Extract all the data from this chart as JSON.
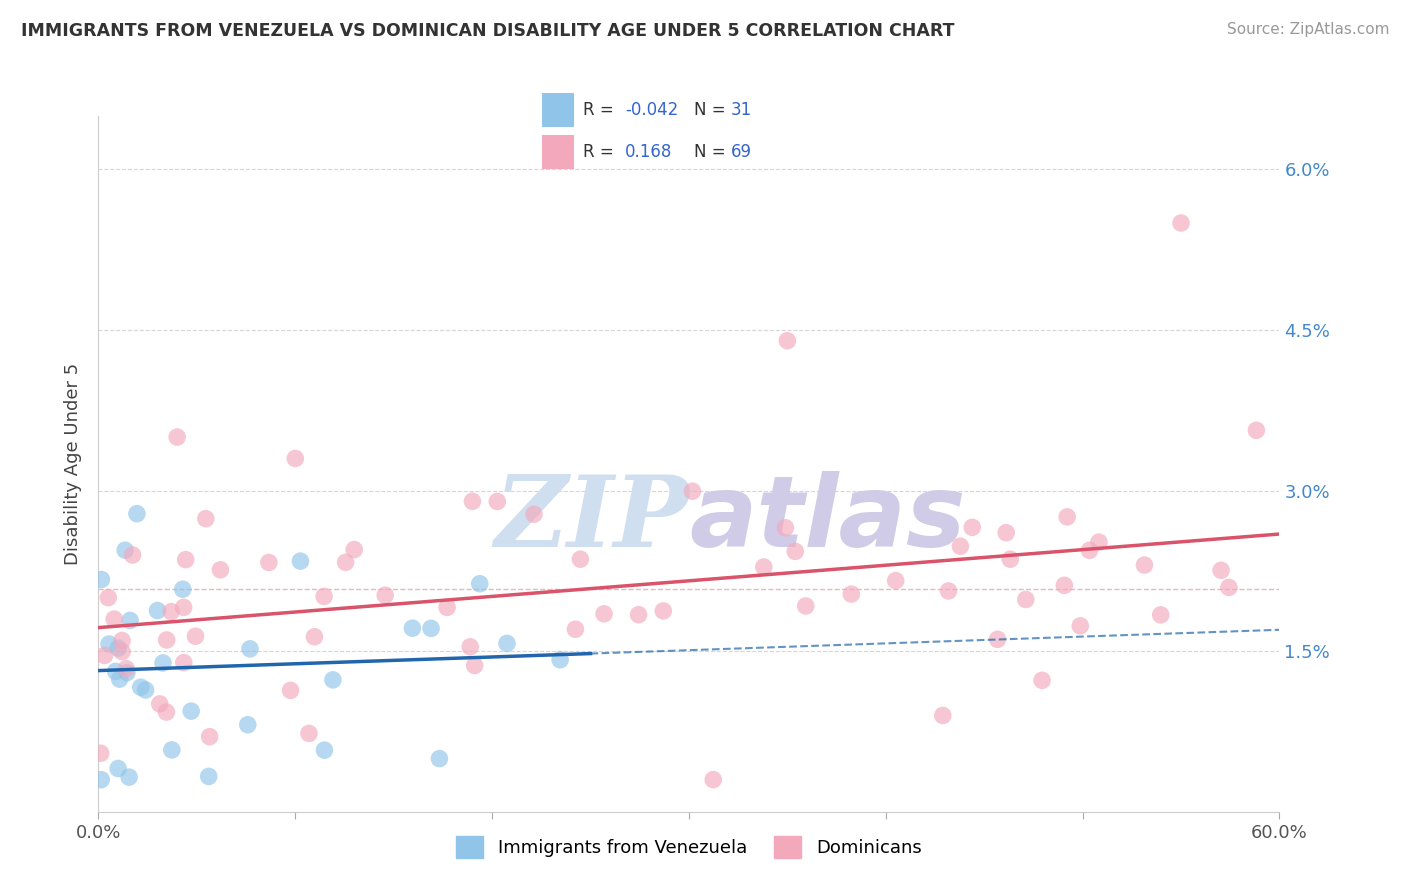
{
  "title": "IMMIGRANTS FROM VENEZUELA VS DOMINICAN DISABILITY AGE UNDER 5 CORRELATION CHART",
  "source": "Source: ZipAtlas.com",
  "ylabel": "Disability Age Under 5",
  "legend_labels": [
    "Immigrants from Venezuela",
    "Dominicans"
  ],
  "r_blue": -0.042,
  "r_pink": 0.168,
  "n_blue": 31,
  "n_pink": 69,
  "xlim": [
    0.0,
    0.6
  ],
  "ylim": [
    0.0,
    0.065
  ],
  "background_color": "#ffffff",
  "color_blue": "#90c4e8",
  "color_pink": "#f4a8bc",
  "line_color_blue": "#2166ac",
  "line_color_pink": "#d9536a",
  "dashed_color_blue": "#7fbfdf",
  "dashed_color_pink": "#ddaaaa",
  "grid_color": "#cccccc",
  "watermark_color": "#d0dff0",
  "watermark_color2": "#d0cce8"
}
